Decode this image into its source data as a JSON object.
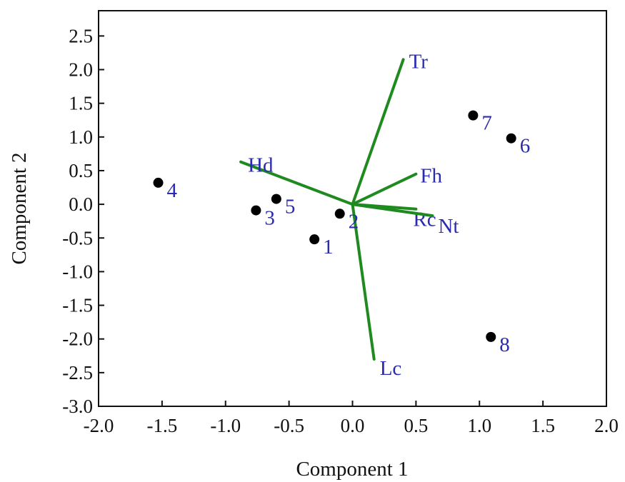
{
  "chart_data": {
    "type": "scatter",
    "title": "",
    "xlabel": "Component 1",
    "ylabel": "Component 2",
    "xlim": [
      -2.0,
      2.0
    ],
    "ylim": [
      -3.0,
      3.0
    ],
    "x_ticks": [
      "-2.0",
      "-1.5",
      "-1.0",
      "-0.5",
      "0.0",
      "0.5",
      "1.0",
      "1.5",
      "2.0"
    ],
    "y_ticks": [
      "-3.0",
      "-2.5",
      "-2.0",
      "-1.5",
      "-1.0",
      "-0.5",
      "0.0",
      "0.5",
      "1.0",
      "1.5",
      "2.0",
      "2.5"
    ],
    "grid": false,
    "legend": "none",
    "point_color": "#000000",
    "label_color": "#2b2bb0",
    "vector_color": "#1f8a1f",
    "points": [
      {
        "label": "1",
        "x": -0.3,
        "y": -0.52
      },
      {
        "label": "2",
        "x": -0.1,
        "y": -0.14
      },
      {
        "label": "3",
        "x": -0.76,
        "y": -0.09
      },
      {
        "label": "4",
        "x": -1.53,
        "y": 0.32
      },
      {
        "label": "5",
        "x": -0.6,
        "y": 0.08
      },
      {
        "label": "6",
        "x": 1.25,
        "y": 0.98
      },
      {
        "label": "7",
        "x": 0.95,
        "y": 1.32
      },
      {
        "label": "8",
        "x": 1.09,
        "y": -1.97
      }
    ],
    "vectors": [
      {
        "label": "Tr",
        "x": 0.4,
        "y": 2.15
      },
      {
        "label": "Hd",
        "x": -0.88,
        "y": 0.63
      },
      {
        "label": "Fh",
        "x": 0.5,
        "y": 0.45
      },
      {
        "label": "Rc",
        "x": 0.5,
        "y": -0.07
      },
      {
        "label": "Nt",
        "x": 0.63,
        "y": -0.17
      },
      {
        "label": "Lc",
        "x": 0.17,
        "y": -2.3
      }
    ]
  }
}
